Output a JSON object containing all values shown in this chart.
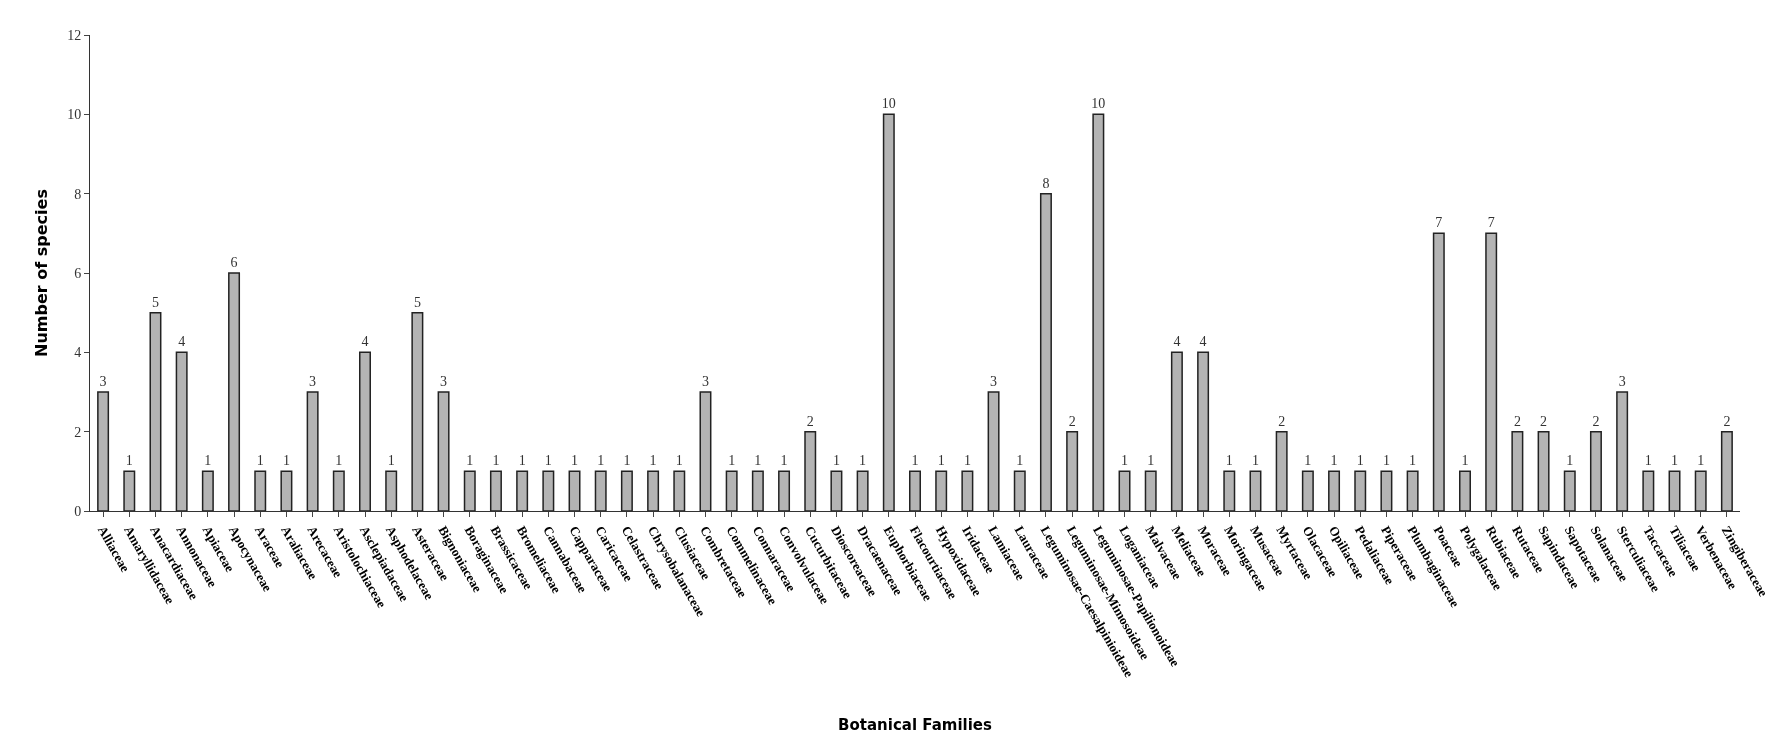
{
  "chart_data": {
    "type": "bar",
    "xlabel": "Botanical Families",
    "ylabel": "Number of species",
    "categories": [
      "Alliaceae",
      "Amaryllidaceae",
      "Anacardiaceae",
      "Annonaceae",
      "Apiaceae",
      "Apocynaceae",
      "Araceae",
      "Araliaceae",
      "Arecaceae",
      "Aristolochiaceae",
      "Asclepiadaceae",
      "Asphodelaceae",
      "Asteraceae",
      "Bignoniaceae",
      "Boraginaceae",
      "Brassicaceae",
      "Bromeliaceae",
      "Cannabaceae",
      "Capparaceae",
      "Caricaceae",
      "Celastraceae",
      "Chrysobalanaceae",
      "Clusiaceae",
      "Combretaceae",
      "Commelinaceae",
      "Connaraceae",
      "Convolvulaceae",
      "Cucurbitaceae",
      "Dioscoreaceae",
      "Dracaenaceae",
      "Euphorbiaceae",
      "Flacourtiaceae",
      "Hypoxidaceae",
      "Iridaceae",
      "Lamiaceae",
      "Lauraceae",
      "Leguminosae-Caesalpinioideae",
      "Leguminosae-Mimosoideae",
      "Leguminosae-Papilionoideae",
      "Loganiaceae",
      "Malvaceae",
      "Meliaceae",
      "Moraceae",
      "Moringaceae",
      "Musaceae",
      "Myrtaceae",
      "Olacaceae",
      "Opiliaceae",
      "Pedaliaceae",
      "Piperaceae",
      "Plumbaginaceae",
      "Poaceae",
      "Polygalaceae",
      "Rubiaceae",
      "Rutaceae",
      "Sapindaceae",
      "Sapotaceae",
      "Solanaceae",
      "Sterculiaceae",
      "Taccaceae",
      "Tiliaceae",
      "Verbenaceae",
      "Zingiberaceae"
    ],
    "values": [
      3,
      1,
      5,
      4,
      1,
      6,
      1,
      1,
      3,
      1,
      4,
      1,
      5,
      3,
      1,
      1,
      1,
      1,
      1,
      1,
      1,
      1,
      1,
      3,
      1,
      1,
      1,
      2,
      1,
      1,
      10,
      1,
      1,
      1,
      3,
      1,
      8,
      2,
      10,
      1,
      1,
      4,
      4,
      1,
      1,
      2,
      1,
      1,
      1,
      1,
      1,
      7,
      1,
      7,
      2,
      2,
      1,
      2,
      3,
      1,
      1,
      1,
      2
    ],
    "color": "#b4b4b4",
    "ylim": [
      0,
      12
    ],
    "yticks": [
      0,
      2,
      4,
      6,
      8,
      10,
      12
    ],
    "data_labels": true
  }
}
